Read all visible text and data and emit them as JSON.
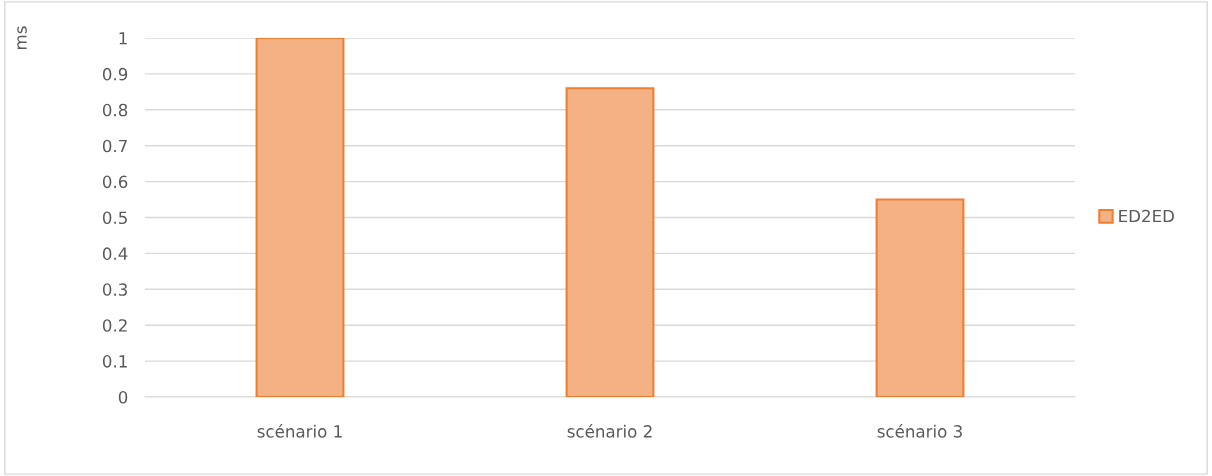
{
  "chart_data": {
    "type": "bar",
    "ylabel": "ms",
    "categories": [
      "scénario 1",
      "scénario 2",
      "scénario 3"
    ],
    "series": [
      {
        "name": "ED2ED",
        "color": "#f4b183",
        "values": [
          1,
          0.86,
          0.55
        ]
      }
    ],
    "ylim": [
      0,
      1
    ],
    "yticks": [
      0,
      0.1,
      0.2,
      0.3,
      0.4,
      0.5,
      0.6,
      0.7,
      0.8,
      0.9,
      1
    ],
    "grid": "y",
    "legend": "right"
  }
}
